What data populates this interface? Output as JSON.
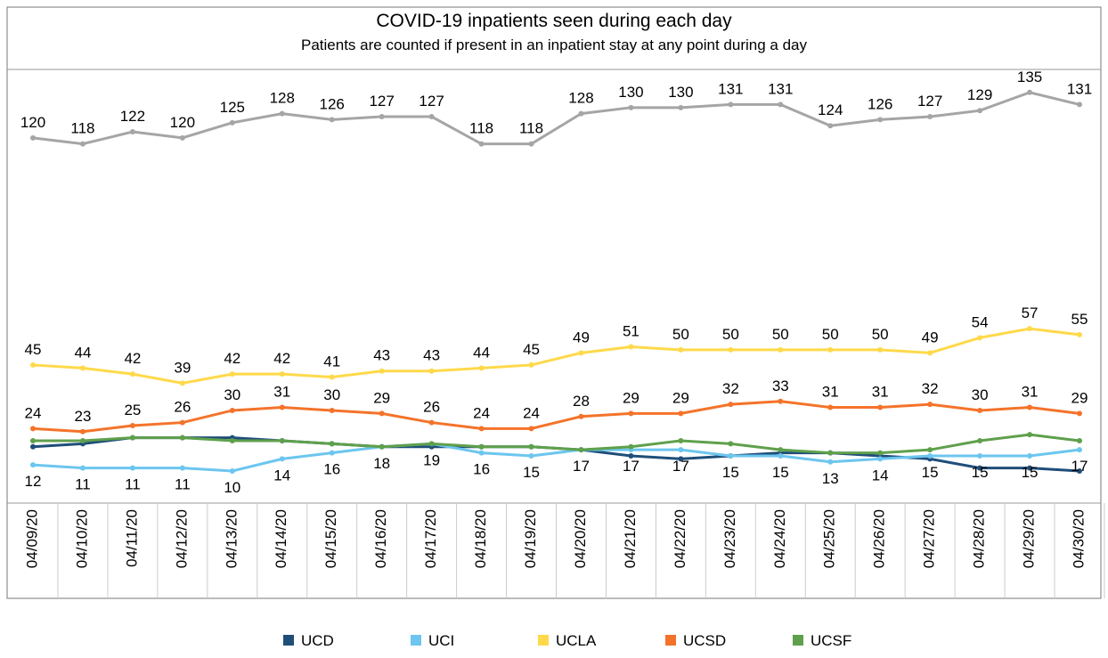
{
  "chart_data": {
    "type": "line",
    "title": "COVID-19 inpatients seen during each day",
    "subtitle": "Patients are counted if present in an inpatient stay at any point during a day",
    "categories": [
      "04/09/20",
      "04/10/20",
      "04/11/20",
      "04/12/20",
      "04/13/20",
      "04/14/20",
      "04/15/20",
      "04/16/20",
      "04/17/20",
      "04/18/20",
      "04/19/20",
      "04/20/20",
      "04/21/20",
      "04/22/20",
      "04/23/20",
      "04/24/20",
      "04/25/20",
      "04/26/20",
      "04/27/20",
      "04/28/20",
      "04/29/20",
      "04/30/20"
    ],
    "ylim": [
      0,
      142
    ],
    "legend": "bottom",
    "series": [
      {
        "color": "#a5a5a5",
        "values": [
          120,
          118,
          122,
          120,
          125,
          128,
          126,
          127,
          127,
          118,
          118,
          128,
          130,
          130,
          131,
          131,
          124,
          126,
          127,
          129,
          135,
          131
        ]
      },
      {
        "name": "UCD",
        "color": "#1f4e79",
        "values": [
          18,
          19,
          21,
          21,
          21,
          20,
          19,
          18,
          18,
          18,
          18,
          17,
          15,
          14,
          15,
          16,
          16,
          15,
          14,
          11,
          11,
          10
        ]
      },
      {
        "name": "UCI",
        "color": "#6cc6ef",
        "values": [
          12,
          11,
          11,
          11,
          10,
          14,
          16,
          18,
          19,
          16,
          15,
          17,
          17,
          17,
          15,
          15,
          13,
          14,
          15,
          15,
          15,
          17
        ]
      },
      {
        "name": "UCLA",
        "color": "#ffd94a",
        "values": [
          45,
          44,
          42,
          39,
          42,
          42,
          41,
          43,
          43,
          44,
          45,
          49,
          51,
          50,
          50,
          50,
          50,
          50,
          49,
          54,
          57,
          55
        ]
      },
      {
        "name": "UCSD",
        "color": "#f4732a",
        "values": [
          24,
          23,
          25,
          26,
          30,
          31,
          30,
          29,
          26,
          24,
          24,
          28,
          29,
          29,
          32,
          33,
          31,
          31,
          32,
          30,
          31,
          29
        ]
      },
      {
        "name": "UCSF",
        "color": "#5fa04c",
        "values": [
          20,
          20,
          21,
          21,
          20,
          20,
          19,
          18,
          19,
          18,
          18,
          17,
          18,
          20,
          19,
          17,
          16,
          16,
          17,
          20,
          22,
          20
        ]
      }
    ]
  }
}
